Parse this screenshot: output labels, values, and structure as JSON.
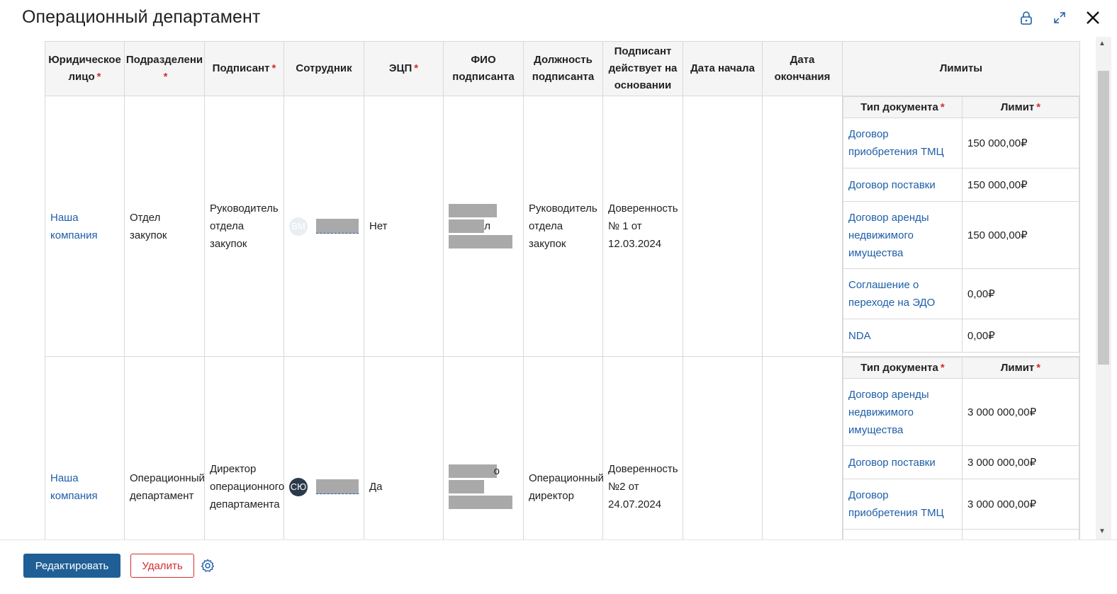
{
  "window": {
    "title": "Операционный департамент",
    "lock_icon": "lock-icon",
    "expand_icon": "expand-icon",
    "close_icon": "close-icon"
  },
  "colors": {
    "link": "#1e5ea8",
    "primary": "#1f5f95",
    "danger": "#d32f2f",
    "required": "#d32f2f"
  },
  "table": {
    "headers": {
      "legal_entity": "Юридическое лицо",
      "department": "Подразделени",
      "signer": "Подписант",
      "employee": "Сотрудник",
      "ecp": "ЭЦП",
      "signer_name": "ФИО подписанта",
      "signer_position": "Должность подписанта",
      "signer_basis": "Подписант действует на основании",
      "start_date": "Дата начала",
      "end_date": "Дата окончания",
      "limits": "Лимиты"
    },
    "required_mark": "*",
    "limits_headers": {
      "doc_type": "Тип документа",
      "limit": "Лимит"
    },
    "rows": [
      {
        "legal_entity": "Наша компания",
        "department": "Отдел закупок",
        "signer": "Руководитель отдела закупок",
        "employee_initials": "ВМ",
        "ecp": "Нет",
        "signer_name_visible": "л",
        "position": "Руководитель отдела закупок",
        "basis": "Доверенность № 1 от 12.03.2024",
        "start_date": "",
        "end_date": "",
        "limits": [
          {
            "doc_type": "Договор приобретения ТМЦ",
            "limit": "150 000,00₽"
          },
          {
            "doc_type": "Договор поставки",
            "limit": "150 000,00₽"
          },
          {
            "doc_type": "Договор аренды недвижимого имущества",
            "limit": "150 000,00₽"
          },
          {
            "doc_type": "Соглашение о переходе на ЭДО",
            "limit": "0,00₽"
          },
          {
            "doc_type": "NDA",
            "limit": "0,00₽"
          }
        ]
      },
      {
        "legal_entity": "Наша компания",
        "department": "Операционный департамент",
        "signer": "Директор операционного департамента",
        "employee_initials": "СЮ",
        "ecp": "Да",
        "signer_name_visible": "о",
        "position": "Операционный директор",
        "basis": "Доверенность №2 от 24.07.2024",
        "start_date": "",
        "end_date": "",
        "limits": [
          {
            "doc_type": "Договор аренды недвижимого имущества",
            "limit": "3 000 000,00₽"
          },
          {
            "doc_type": "Договор поставки",
            "limit": "3 000 000,00₽"
          },
          {
            "doc_type": "Договор приобретения ТМЦ",
            "limit": "3 000 000,00₽"
          }
        ]
      }
    ]
  },
  "footer": {
    "edit_label": "Редактировать",
    "delete_label": "Удалить",
    "settings_icon": "gear-icon"
  }
}
